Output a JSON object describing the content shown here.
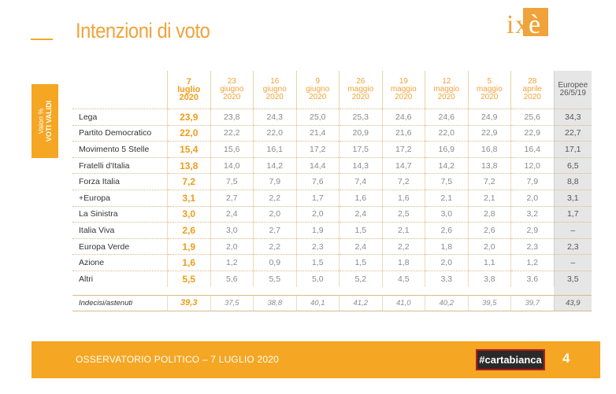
{
  "title": "Intenzioni di voto",
  "logo": {
    "text": "ixè",
    "color": "#f0a33a"
  },
  "side_label": {
    "line1": "Valori %",
    "line2": "VOTI VALIDI"
  },
  "columns": [
    {
      "line1": "7",
      "line2": "luglio",
      "line3": "2020"
    },
    {
      "line1": "23",
      "line2": "giugno",
      "line3": "2020"
    },
    {
      "line1": "16",
      "line2": "giugno",
      "line3": "2020"
    },
    {
      "line1": "9",
      "line2": "giugno",
      "line3": "2020"
    },
    {
      "line1": "26",
      "line2": "maggio",
      "line3": "2020"
    },
    {
      "line1": "19",
      "line2": "maggio",
      "line3": "2020"
    },
    {
      "line1": "12",
      "line2": "maggio",
      "line3": "2020"
    },
    {
      "line1": "5",
      "line2": "maggio",
      "line3": "2020"
    },
    {
      "line1": "28",
      "line2": "aprile",
      "line3": "2020"
    },
    {
      "line1": "Europee",
      "line2": "26/5/19",
      "line3": ""
    }
  ],
  "rows": [
    {
      "party": "Lega",
      "values": [
        "23,9",
        "23,8",
        "24,3",
        "25,0",
        "25,3",
        "24,6",
        "24,6",
        "24,9",
        "25,6",
        "34,3"
      ]
    },
    {
      "party": "Partito Democratico",
      "values": [
        "22,0",
        "22,2",
        "22,0",
        "21,4",
        "20,9",
        "21,6",
        "22,0",
        "22,9",
        "22,9",
        "22,7"
      ]
    },
    {
      "party": "Movimento 5 Stelle",
      "values": [
        "15,4",
        "15,6",
        "16,1",
        "17,2",
        "17,5",
        "17,2",
        "16,9",
        "16,8",
        "16,4",
        "17,1"
      ]
    },
    {
      "party": "Fratelli d'Italia",
      "values": [
        "13,8",
        "14,0",
        "14,2",
        "14,4",
        "14,3",
        "14,7",
        "14,2",
        "13,8",
        "12,0",
        "6,5"
      ]
    },
    {
      "party": "Forza Italia",
      "values": [
        "7,2",
        "7,5",
        "7,9",
        "7,6",
        "7,4",
        "7,2",
        "7,5",
        "7,2",
        "7,9",
        "8,8"
      ]
    },
    {
      "party": "+Europa",
      "values": [
        "3,1",
        "2,7",
        "2,2",
        "1,7",
        "1,6",
        "1,6",
        "2,1",
        "2,1",
        "2,0",
        "3,1"
      ]
    },
    {
      "party": "La Sinistra",
      "values": [
        "3,0",
        "2,4",
        "2,0",
        "2,0",
        "2,4",
        "2,5",
        "3,0",
        "2,8",
        "3,2",
        "1,7"
      ]
    },
    {
      "party": "Italia Viva",
      "values": [
        "2,6",
        "3,0",
        "2,7",
        "1,9",
        "1,5",
        "2,1",
        "2,6",
        "2,6",
        "2,9",
        "–"
      ]
    },
    {
      "party": "Europa Verde",
      "values": [
        "1,9",
        "2,0",
        "2,2",
        "2,3",
        "2,4",
        "2,2",
        "1,8",
        "2,0",
        "2,3",
        "2,3"
      ]
    },
    {
      "party": "Azione",
      "values": [
        "1,6",
        "1,2",
        "0,9",
        "1,5",
        "1,5",
        "1,8",
        "2,0",
        "1,1",
        "1,2",
        "–"
      ]
    },
    {
      "party": "Altri",
      "values": [
        "5,5",
        "5,6",
        "5,5",
        "5,0",
        "5,2",
        "4,5",
        "3,3",
        "3,8",
        "3,6",
        "3,5"
      ]
    }
  ],
  "undecided": {
    "label": "Indecisi/astenuti",
    "values": [
      "39,3",
      "37,5",
      "38,8",
      "40,1",
      "41,2",
      "41,0",
      "40,2",
      "39,5",
      "39,7",
      "43,9"
    ]
  },
  "footer": {
    "text": "OSSERVATORIO POLITICO – 7 LUGLIO 2020",
    "badge": "#cartabianca",
    "page": "4"
  },
  "colors": {
    "accent": "#f5a623",
    "highlight": "#ef9c1b",
    "europee_bg": "#e6e6e6"
  }
}
